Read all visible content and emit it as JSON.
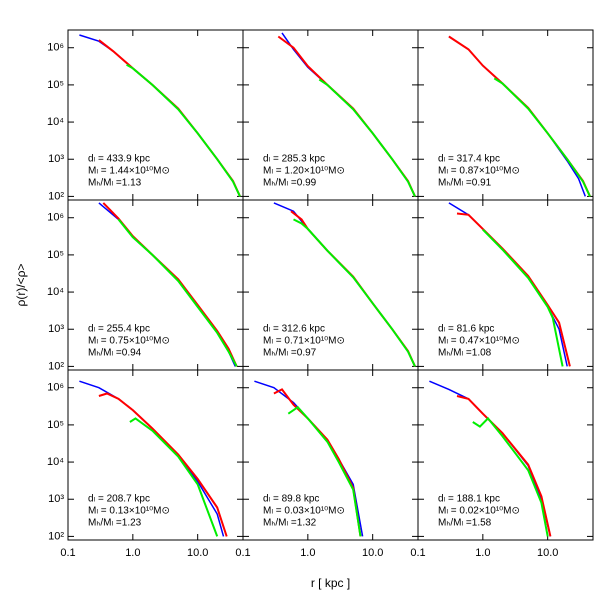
{
  "chart_data": [
    {
      "type": "line",
      "log_x": true,
      "log_y": true,
      "xlim": [
        0.1,
        50
      ],
      "ylim": [
        80,
        3000000
      ],
      "xticks": [
        0.1,
        {
          "value": 1,
          "label": "1.0"
        },
        {
          "value": 10,
          "label": "10.0"
        }
      ],
      "yticks": [
        {
          "value": 100,
          "label": "10²"
        },
        {
          "value": 1000,
          "label": "10³"
        },
        {
          "value": 10000,
          "label": "10⁴"
        },
        {
          "value": 100000,
          "label": "10⁵"
        },
        {
          "value": 1000000,
          "label": "10⁶"
        }
      ],
      "annotations": [
        "dₗ = 433.9 kpc",
        "Mₗ = 1.44×10¹⁰M⊙",
        "Mₕ/Mₗ =1.13"
      ],
      "series": [
        {
          "color": "#0000ff",
          "x": [
            0.15,
            0.3,
            0.5,
            1,
            2,
            5,
            10,
            20,
            35,
            45
          ],
          "values": [
            2200000,
            1500000,
            800000,
            280000,
            100000,
            22000,
            5000,
            1000,
            250,
            100
          ]
        },
        {
          "color": "#ff0000",
          "x": [
            0.3,
            0.5,
            1,
            2,
            5,
            10,
            20,
            35,
            45
          ],
          "values": [
            1600000,
            800000,
            280000,
            100000,
            23000,
            5000,
            1000,
            260,
            100
          ]
        },
        {
          "color": "#00ee00",
          "x": [
            0.8,
            1,
            2,
            5,
            10,
            20,
            35,
            45
          ],
          "values": [
            350000,
            280000,
            100000,
            22000,
            5000,
            1000,
            250,
            100
          ]
        }
      ]
    },
    {
      "type": "line",
      "log_x": true,
      "log_y": true,
      "xlim": [
        0.1,
        50
      ],
      "ylim": [
        80,
        3000000
      ],
      "xticks": [
        0.1,
        {
          "value": 1,
          "label": "1.0"
        },
        {
          "value": 10,
          "label": "10.0"
        }
      ],
      "yticks": [
        {
          "value": 100,
          "label": "10²"
        },
        {
          "value": 1000,
          "label": "10³"
        },
        {
          "value": 10000,
          "label": "10⁴"
        },
        {
          "value": 100000,
          "label": "10⁵"
        },
        {
          "value": 1000000,
          "label": "10⁶"
        }
      ],
      "annotations": [
        "dₗ = 285.3 kpc",
        "Mₗ = 1.20×10¹⁰M⊙",
        "Mₕ/Mₗ =0.99"
      ],
      "series": [
        {
          "color": "#0000ff",
          "x": [
            0.4,
            0.6,
            1,
            2,
            5,
            10,
            20,
            35,
            45
          ],
          "values": [
            2500000,
            900000,
            300000,
            100000,
            22000,
            5000,
            1000,
            250,
            100
          ]
        },
        {
          "color": "#ff0000",
          "x": [
            0.35,
            0.6,
            1,
            2,
            5,
            10,
            20,
            35,
            45
          ],
          "values": [
            2000000,
            1000000,
            320000,
            100000,
            23000,
            5000,
            1000,
            260,
            100
          ]
        },
        {
          "color": "#00ee00",
          "x": [
            1.5,
            2,
            5,
            10,
            20,
            35,
            45
          ],
          "values": [
            140000,
            100000,
            22000,
            5000,
            1000,
            250,
            100
          ]
        }
      ]
    },
    {
      "type": "line",
      "log_x": true,
      "log_y": true,
      "xlim": [
        0.1,
        50
      ],
      "ylim": [
        80,
        3000000
      ],
      "xticks": [
        0.1,
        {
          "value": 1,
          "label": "1.0"
        },
        {
          "value": 10,
          "label": "10.0"
        }
      ],
      "yticks": [
        {
          "value": 100,
          "label": "10²"
        },
        {
          "value": 1000,
          "label": "10³"
        },
        {
          "value": 10000,
          "label": "10⁴"
        },
        {
          "value": 100000,
          "label": "10⁵"
        },
        {
          "value": 1000000,
          "label": "10⁶"
        }
      ],
      "annotations": [
        "dₗ = 317.4 kpc",
        "Mₗ = 0.87×10¹⁰M⊙",
        "Mₕ/Mₗ =0.91"
      ],
      "series": [
        {
          "color": "#0000ff",
          "x": [
            0.3,
            0.6,
            1,
            2,
            5,
            10,
            20,
            30,
            38
          ],
          "values": [
            2000000,
            900000,
            330000,
            110000,
            23000,
            5000,
            900,
            300,
            100
          ]
        },
        {
          "color": "#ff0000",
          "x": [
            0.3,
            0.6,
            1,
            2,
            5,
            10,
            20,
            35,
            45
          ],
          "values": [
            2000000,
            900000,
            330000,
            110000,
            24000,
            5000,
            1000,
            260,
            100
          ]
        },
        {
          "color": "#00ee00",
          "x": [
            1.5,
            2,
            5,
            10,
            20,
            35,
            45
          ],
          "values": [
            150000,
            110000,
            23000,
            5000,
            1000,
            250,
            100
          ]
        }
      ]
    },
    {
      "type": "line",
      "log_x": true,
      "log_y": true,
      "xlim": [
        0.1,
        50
      ],
      "ylim": [
        80,
        3000000
      ],
      "xticks": [
        0.1,
        {
          "value": 1,
          "label": "1.0"
        },
        {
          "value": 10,
          "label": "10.0"
        }
      ],
      "yticks": [
        {
          "value": 100,
          "label": "10²"
        },
        {
          "value": 1000,
          "label": "10³"
        },
        {
          "value": 10000,
          "label": "10⁴"
        },
        {
          "value": 100000,
          "label": "10⁵"
        },
        {
          "value": 1000000,
          "label": "10⁶"
        }
      ],
      "ylabel": "ρ(r)/<ρ>",
      "annotations": [
        "dₗ = 255.4 kpc",
        "Mₗ = 0.75×10¹⁰M⊙",
        "Mₕ/Mₗ =0.94"
      ],
      "series": [
        {
          "color": "#0000ff",
          "x": [
            0.3,
            0.6,
            1,
            2,
            5,
            10,
            20,
            30,
            38
          ],
          "values": [
            2500000,
            900000,
            300000,
            100000,
            20000,
            4000,
            800,
            250,
            100
          ]
        },
        {
          "color": "#ff0000",
          "x": [
            0.35,
            0.6,
            1,
            2,
            5,
            10,
            20,
            30,
            40
          ],
          "values": [
            2500000,
            950000,
            320000,
            100000,
            22000,
            4500,
            900,
            300,
            100
          ]
        },
        {
          "color": "#00ee00",
          "x": [
            0.6,
            1,
            2,
            5,
            10,
            20,
            30,
            40
          ],
          "values": [
            900000,
            300000,
            100000,
            20000,
            4000,
            800,
            250,
            100
          ]
        }
      ]
    },
    {
      "type": "line",
      "log_x": true,
      "log_y": true,
      "xlim": [
        0.1,
        50
      ],
      "ylim": [
        80,
        3000000
      ],
      "xticks": [
        0.1,
        {
          "value": 1,
          "label": "1.0"
        },
        {
          "value": 10,
          "label": "10.0"
        }
      ],
      "yticks": [
        {
          "value": 100,
          "label": "10²"
        },
        {
          "value": 1000,
          "label": "10³"
        },
        {
          "value": 10000,
          "label": "10⁴"
        },
        {
          "value": 100000,
          "label": "10⁵"
        },
        {
          "value": 1000000,
          "label": "10⁶"
        }
      ],
      "annotations": [
        "dₗ = 312.6 kpc",
        "Mₗ = 0.71×10¹⁰M⊙",
        "Mₕ/Mₗ =0.97"
      ],
      "series": [
        {
          "color": "#0000ff",
          "x": [
            0.3,
            0.6,
            1,
            2,
            5,
            10,
            20,
            35,
            45
          ],
          "values": [
            2500000,
            1500000,
            500000,
            130000,
            25000,
            5000,
            1000,
            250,
            100
          ]
        },
        {
          "color": "#ff0000",
          "x": [
            0.55,
            0.8,
            1,
            2,
            5,
            10,
            20,
            35,
            45
          ],
          "values": [
            1500000,
            900000,
            500000,
            130000,
            26000,
            5000,
            1000,
            260,
            100
          ]
        },
        {
          "color": "#00ee00",
          "x": [
            0.6,
            0.8,
            1,
            2,
            5,
            10,
            20,
            35,
            45
          ],
          "values": [
            900000,
            700000,
            500000,
            130000,
            25000,
            5000,
            1000,
            250,
            100
          ]
        }
      ]
    },
    {
      "type": "line",
      "log_x": true,
      "log_y": true,
      "xlim": [
        0.1,
        50
      ],
      "ylim": [
        80,
        3000000
      ],
      "xticks": [
        0.1,
        {
          "value": 1,
          "label": "1.0"
        },
        {
          "value": 10,
          "label": "10.0"
        }
      ],
      "yticks": [
        {
          "value": 100,
          "label": "10²"
        },
        {
          "value": 1000,
          "label": "10³"
        },
        {
          "value": 10000,
          "label": "10⁴"
        },
        {
          "value": 100000,
          "label": "10⁵"
        },
        {
          "value": 1000000,
          "label": "10⁶"
        }
      ],
      "annotations": [
        "dₗ = 81.6 kpc",
        "Mₗ = 0.47×10¹⁰M⊙",
        "Mₕ/Mₗ =1.08"
      ],
      "series": [
        {
          "color": "#0000ff",
          "x": [
            0.3,
            0.6,
            1,
            2,
            5,
            10,
            15,
            20
          ],
          "values": [
            2500000,
            1200000,
            500000,
            150000,
            25000,
            4000,
            1000,
            100
          ]
        },
        {
          "color": "#ff0000",
          "x": [
            0.4,
            0.6,
            1,
            2,
            5,
            10,
            15,
            22
          ],
          "values": [
            1300000,
            1200000,
            500000,
            150000,
            27000,
            4500,
            1500,
            100
          ]
        },
        {
          "color": "#00ee00",
          "x": [
            1,
            2,
            5,
            10,
            12,
            17
          ],
          "values": [
            480000,
            140000,
            24000,
            4000,
            2000,
            100
          ]
        }
      ]
    },
    {
      "type": "line",
      "log_x": true,
      "log_y": true,
      "xlim": [
        0.1,
        50
      ],
      "ylim": [
        80,
        3000000
      ],
      "xticks": [
        0.1,
        {
          "value": 1,
          "label": "1.0"
        },
        {
          "value": 10,
          "label": "10.0"
        }
      ],
      "yticks": [
        {
          "value": 100,
          "label": "10²"
        },
        {
          "value": 1000,
          "label": "10³"
        },
        {
          "value": 10000,
          "label": "10⁴"
        },
        {
          "value": 100000,
          "label": "10⁵"
        },
        {
          "value": 1000000,
          "label": "10⁶"
        }
      ],
      "annotations": [
        "dₗ = 208.7 kpc",
        "Mₗ = 0.13×10¹⁰M⊙",
        "Mₕ/Mₗ =1.23"
      ],
      "series": [
        {
          "color": "#0000ff",
          "x": [
            0.15,
            0.3,
            0.6,
            1,
            2,
            5,
            10,
            20,
            25
          ],
          "values": [
            1500000,
            1000000,
            500000,
            250000,
            80000,
            15000,
            3000,
            400,
            100
          ]
        },
        {
          "color": "#ff0000",
          "x": [
            0.3,
            0.4,
            0.6,
            1,
            2,
            5,
            10,
            20,
            28
          ],
          "values": [
            600000,
            700000,
            500000,
            250000,
            80000,
            16000,
            3500,
            600,
            100
          ]
        },
        {
          "color": "#00ee00",
          "x": [
            0.9,
            1.1,
            2,
            5,
            10,
            20
          ],
          "values": [
            120000,
            150000,
            70000,
            14000,
            2500,
            100
          ]
        }
      ]
    },
    {
      "type": "line",
      "log_x": true,
      "log_y": true,
      "xlim": [
        0.1,
        50
      ],
      "ylim": [
        80,
        3000000
      ],
      "xticks": [
        0.1,
        {
          "value": 1,
          "label": "1.0"
        },
        {
          "value": 10,
          "label": "10.0"
        }
      ],
      "yticks": [
        {
          "value": 100,
          "label": "10²"
        },
        {
          "value": 1000,
          "label": "10³"
        },
        {
          "value": 10000,
          "label": "10⁴"
        },
        {
          "value": 100000,
          "label": "10⁵"
        },
        {
          "value": 1000000,
          "label": "10⁶"
        }
      ],
      "xlabel": "r [ kpc ]",
      "annotations": [
        "dₗ = 89.8 kpc",
        "Mₗ = 0.03×10¹⁰M⊙",
        "Mₕ/Mₗ =1.32"
      ],
      "series": [
        {
          "color": "#0000ff",
          "x": [
            0.15,
            0.3,
            0.6,
            1,
            2,
            3,
            5,
            7
          ],
          "values": [
            1500000,
            1000000,
            400000,
            150000,
            40000,
            12000,
            2500,
            100
          ]
        },
        {
          "color": "#ff0000",
          "x": [
            0.3,
            0.4,
            0.6,
            1,
            2,
            3,
            5,
            6.5
          ],
          "values": [
            700000,
            900000,
            350000,
            150000,
            40000,
            12000,
            2000,
            100
          ]
        },
        {
          "color": "#00ee00",
          "x": [
            0.5,
            0.7,
            1,
            2,
            3,
            5,
            6.5
          ],
          "values": [
            200000,
            300000,
            150000,
            35000,
            10000,
            1800,
            100
          ]
        }
      ]
    },
    {
      "type": "line",
      "log_x": true,
      "log_y": true,
      "xlim": [
        0.1,
        50
      ],
      "ylim": [
        80,
        3000000
      ],
      "xticks": [
        0.1,
        {
          "value": 1,
          "label": "1.0"
        },
        {
          "value": 10,
          "label": "10.0"
        }
      ],
      "yticks": [
        {
          "value": 100,
          "label": "10²"
        },
        {
          "value": 1000,
          "label": "10³"
        },
        {
          "value": 10000,
          "label": "10⁴"
        },
        {
          "value": 100000,
          "label": "10⁵"
        },
        {
          "value": 1000000,
          "label": "10⁶"
        }
      ],
      "annotations": [
        "dₗ = 188.1 kpc",
        "Mₗ = 0.02×10¹⁰M⊙",
        "Mₕ/Mₗ =1.58"
      ],
      "series": [
        {
          "color": "#0000ff",
          "x": [
            0.15,
            0.3,
            0.6,
            1,
            2,
            5,
            8,
            11
          ],
          "values": [
            1500000,
            900000,
            500000,
            200000,
            60000,
            8000,
            1000,
            100
          ]
        },
        {
          "color": "#ff0000",
          "x": [
            0.4,
            0.6,
            1,
            2,
            5,
            8,
            11
          ],
          "values": [
            600000,
            500000,
            200000,
            60000,
            8500,
            1200,
            100
          ]
        },
        {
          "color": "#00ee00",
          "x": [
            0.7,
            0.9,
            1.2,
            2,
            5,
            8,
            10
          ],
          "values": [
            120000,
            90000,
            150000,
            50000,
            6000,
            800,
            100
          ]
        }
      ]
    }
  ]
}
